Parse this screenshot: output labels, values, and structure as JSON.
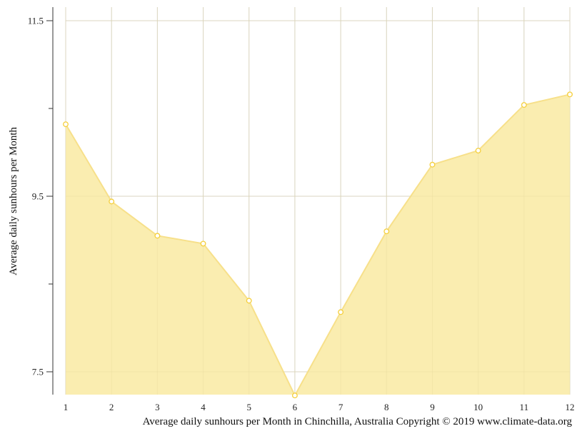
{
  "chart_data": {
    "type": "area",
    "title": "Average daily sunhours per Month in Chinchilla, Australia Copyright © 2019 www.climate-data.org",
    "xlabel": "",
    "ylabel": "Average daily sunhours per Month",
    "categories": [
      "1",
      "2",
      "3",
      "4",
      "5",
      "6",
      "7",
      "8",
      "9",
      "10",
      "11",
      "12"
    ],
    "series": [
      {
        "name": "Average daily sunhours",
        "values": [
          10.32,
          9.44,
          9.05,
          8.96,
          8.31,
          7.23,
          8.18,
          9.1,
          9.86,
          10.02,
          10.54,
          10.66
        ]
      }
    ],
    "ylim": [
      7.24,
      11.65
    ],
    "yticks_labeled": [
      7.5,
      9.5,
      11.5
    ],
    "yticks_minor": [
      8.5,
      10.5
    ],
    "grid": true,
    "legend": "none",
    "colors": {
      "fill": "#faedb0",
      "line": "#f7e08a",
      "marker_stroke": "#f5cf3c",
      "marker_fill": "#ffffff",
      "grid": "#d6d6d6",
      "axis": "#333333"
    }
  },
  "labels": {
    "y_axis_title": "Average daily sunhours per Month",
    "caption": "Average daily sunhours per Month in Chinchilla, Australia Copyright © 2019 www.climate-data.org",
    "y_tick_labels": [
      "11.5",
      "9.5",
      "7.5"
    ],
    "x_tick_labels": [
      "1",
      "2",
      "3",
      "4",
      "5",
      "6",
      "7",
      "8",
      "9",
      "10",
      "11",
      "12"
    ]
  }
}
